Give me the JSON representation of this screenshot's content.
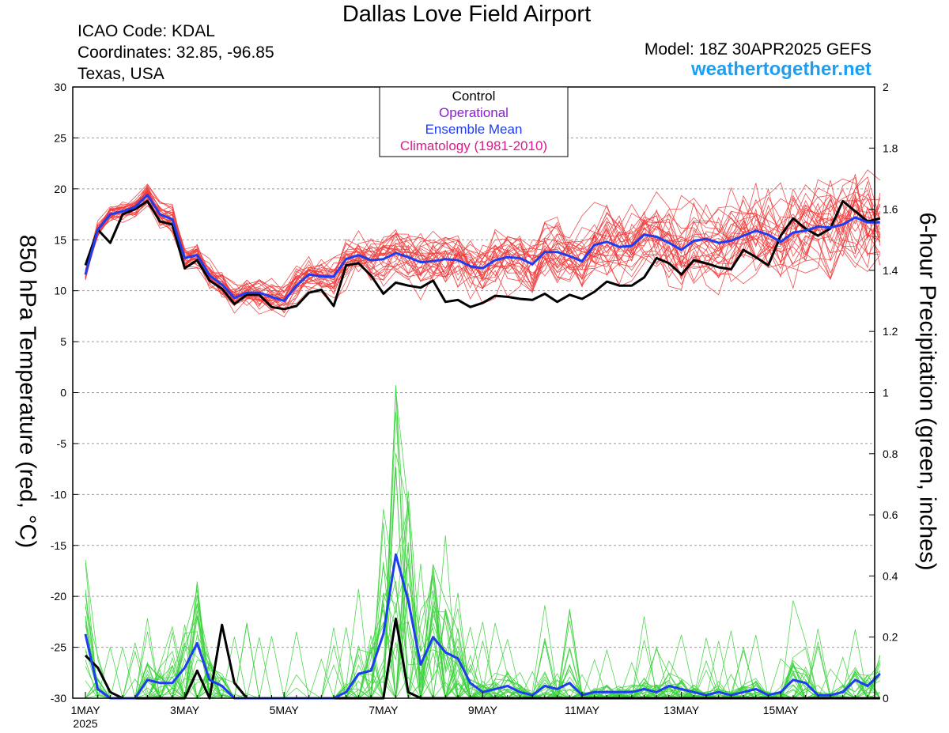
{
  "header": {
    "title": "Dallas Love Field Airport",
    "icao": "ICAO Code: KDAL",
    "coords": "Coordinates: 32.85, -96.85",
    "region": "Texas, USA",
    "model": "Model: 18Z 30APR2025 GEFS",
    "site": "weathertogether.net"
  },
  "colors": {
    "members_temp": "#f03c3c",
    "members_precip": "#3cd23c",
    "control": "#000000",
    "operational": "#8a1fd6",
    "ensemble_mean": "#1e3cf0",
    "climatology": "#e0188c",
    "site": "#1e9ef0"
  },
  "chart_data": {
    "type": "line",
    "title": "Dallas Love Field Airport",
    "ylabel": "850 hPa Temperature (red, °C)",
    "y2label": "6-hour Precipitation (green, inches)",
    "ylim": [
      -30,
      30
    ],
    "y2lim": [
      0,
      2
    ],
    "yticks": [
      "30",
      "25",
      "20",
      "15",
      "10",
      "5",
      "0",
      "-5",
      "-10",
      "-15",
      "-20",
      "-25",
      "-30"
    ],
    "y2ticks": [
      "2",
      "1.8",
      "1.6",
      "1.4",
      "1.2",
      "1",
      "0.8",
      "0.6",
      "0.4",
      "0.2",
      "0"
    ],
    "x_unit": "6-hour steps from 00Z 1MAY2025",
    "xticks": [
      {
        "step": 0,
        "label": "1MAY",
        "sublabel": "2025"
      },
      {
        "step": 8,
        "label": "3MAY"
      },
      {
        "step": 16,
        "label": "5MAY"
      },
      {
        "step": 24,
        "label": "7MAY"
      },
      {
        "step": 32,
        "label": "9MAY"
      },
      {
        "step": 40,
        "label": "11MAY"
      },
      {
        "step": 48,
        "label": "13MAY"
      },
      {
        "step": 56,
        "label": "15MAY"
      }
    ],
    "legend": {
      "position": "top-center",
      "entries": [
        "Control",
        "Operational",
        "Ensemble Mean",
        "Climatology (1981-2010)"
      ]
    },
    "grid": true,
    "series": [
      {
        "name": "Control",
        "axis": "temp",
        "values": [
          12.5,
          16,
          14.7,
          17.5,
          18,
          18.8,
          16.8,
          16.5,
          12.2,
          13,
          11,
          10.2,
          8.7,
          9.6,
          9.6,
          8.4,
          8.2,
          8.5,
          9.8,
          10.1,
          8.5,
          12.5,
          12.7,
          11.5,
          9.7,
          10.8,
          10.5,
          10.3,
          11,
          8.9,
          9.1,
          8.4,
          8.8,
          9.5,
          9.4,
          9.2,
          9.1,
          9.7,
          8.9,
          9.6,
          9.2,
          9.9,
          10.9,
          10.5,
          10.5,
          11.3,
          13.2,
          12.7,
          11.6,
          13,
          12.7,
          12.3,
          12.1,
          14,
          13.3,
          12.5,
          15.4,
          17.1,
          16.1,
          15.4,
          16.1,
          18.8,
          17.8,
          16.8,
          17.1
        ]
      },
      {
        "name": "Ensemble Mean",
        "axis": "temp",
        "values": [
          11.6,
          16,
          17.5,
          17.8,
          18.2,
          19.4,
          17.5,
          17,
          13.2,
          13.5,
          11.5,
          10.6,
          9.3,
          9.8,
          9.8,
          9.4,
          9,
          10.5,
          11.6,
          11.4,
          11.4,
          13.1,
          13.5,
          13,
          13.1,
          13.7,
          13.3,
          12.8,
          12.9,
          13.1,
          13,
          12.4,
          12.2,
          13,
          13.3,
          13.2,
          12.6,
          13.8,
          13.8,
          13.4,
          12.9,
          14.5,
          14.8,
          14.3,
          14.4,
          15.5,
          15.3,
          14.7,
          14,
          14.9,
          15.1,
          14.7,
          14.9,
          15.4,
          15.9,
          15.5,
          14.8,
          15.7,
          15.9,
          16.3,
          16.2,
          16.5,
          17.2,
          16.7,
          16.7
        ]
      },
      {
        "name": "Control",
        "axis": "precip",
        "values": [
          0.14,
          0.1,
          0.02,
          0,
          0,
          0,
          0,
          0,
          0,
          0.09,
          0,
          0.24,
          0.05,
          0,
          0,
          0,
          0,
          0,
          0,
          0,
          0,
          0,
          0,
          0,
          0,
          0.26,
          0.02,
          0,
          0,
          0,
          0,
          0,
          0,
          0,
          0,
          0,
          0,
          0,
          0,
          0,
          0,
          0,
          0,
          0,
          0,
          0,
          0,
          0,
          0,
          0,
          0,
          0,
          0,
          0,
          0,
          0,
          0,
          0,
          0,
          0,
          0,
          0,
          0,
          0,
          0
        ]
      },
      {
        "name": "Ensemble Mean",
        "axis": "precip",
        "values": [
          0.21,
          0.03,
          0,
          0,
          0,
          0.06,
          0.05,
          0.05,
          0.1,
          0.18,
          0.06,
          0.04,
          0,
          0,
          0,
          0,
          0,
          0,
          0,
          0,
          0,
          0.02,
          0.08,
          0.09,
          0.21,
          0.47,
          0.32,
          0.11,
          0.2,
          0.15,
          0.13,
          0.05,
          0.02,
          0.03,
          0.04,
          0.02,
          0.01,
          0.04,
          0.03,
          0.05,
          0.01,
          0.02,
          0.02,
          0.02,
          0.02,
          0.03,
          0.02,
          0.04,
          0.03,
          0.02,
          0.01,
          0.02,
          0.01,
          0.02,
          0.03,
          0.01,
          0.02,
          0.06,
          0.05,
          0.01,
          0.01,
          0.02,
          0.06,
          0.04,
          0.08
        ]
      }
    ],
    "member_count": 30
  }
}
